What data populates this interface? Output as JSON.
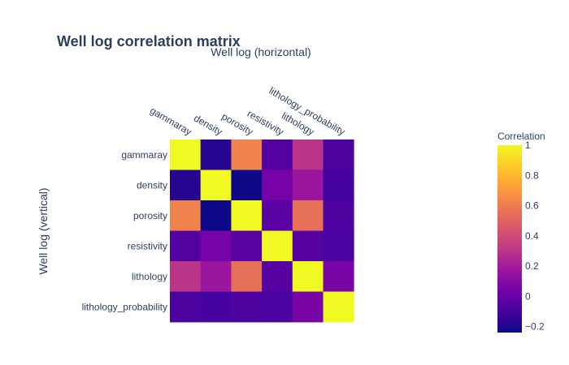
{
  "chart_data": {
    "type": "heatmap",
    "title": "Well log correlation matrix",
    "xlabel": "Well log (horizontal)",
    "ylabel": "Well log (vertical)",
    "x": [
      "gammaray",
      "density",
      "porosity",
      "resistivity",
      "lithology",
      "lithology_probability"
    ],
    "y": [
      "gammaray",
      "density",
      "porosity",
      "resistivity",
      "lithology",
      "lithology_probability"
    ],
    "z": [
      [
        1.0,
        -0.18,
        0.62,
        -0.06,
        0.3,
        -0.08
      ],
      [
        -0.18,
        1.0,
        -0.24,
        0.05,
        0.17,
        -0.1
      ],
      [
        0.62,
        -0.24,
        1.0,
        -0.04,
        0.55,
        -0.08
      ],
      [
        -0.06,
        0.05,
        -0.04,
        1.0,
        -0.05,
        -0.09
      ],
      [
        0.3,
        0.17,
        0.55,
        -0.05,
        1.0,
        0.06
      ],
      [
        -0.08,
        -0.1,
        -0.08,
        -0.09,
        0.06,
        1.0
      ]
    ],
    "colorbar": {
      "title": "Correlation",
      "zmin": -0.24,
      "zmax": 1.0,
      "ticks": [
        -0.2,
        0,
        0.2,
        0.4,
        0.6,
        0.8,
        1
      ],
      "tick_labels": [
        "−0.2",
        "0",
        "0.2",
        "0.4",
        "0.6",
        "0.8",
        "1"
      ]
    },
    "colorscale": [
      "#0d0887",
      "#46039f",
      "#7201a8",
      "#9c179e",
      "#bd3786",
      "#d8576b",
      "#ed7953",
      "#fb9f3a",
      "#fdca26",
      "#f0f921"
    ],
    "x_axis_side": "top",
    "grid": false,
    "legend": "colorbar right"
  }
}
